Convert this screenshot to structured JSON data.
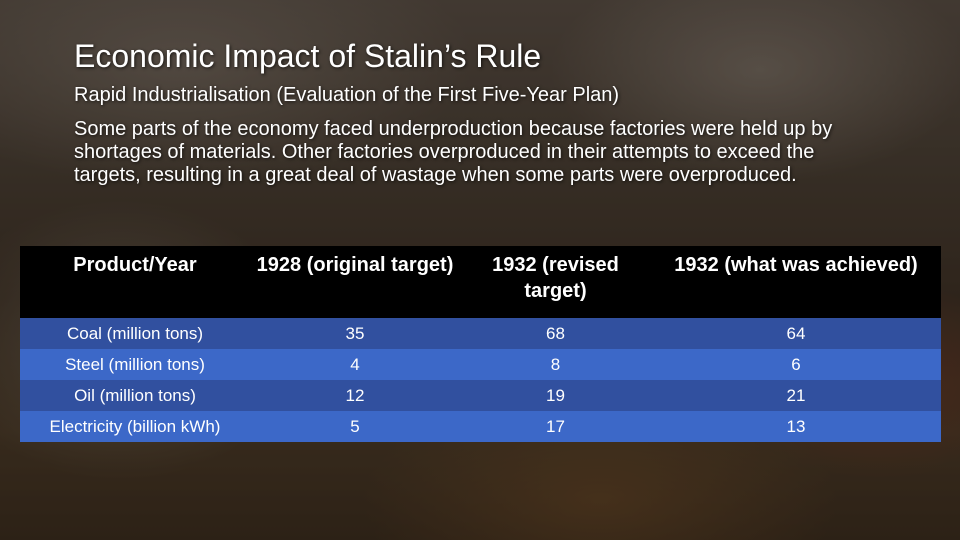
{
  "slide": {
    "title": "Economic Impact of Stalin’s Rule",
    "subtitle": "Rapid Industrialisation (Evaluation of the First Five-Year Plan)",
    "body": "Some parts of the economy faced underproduction because factories were held up by shortages of materials. Other factories overproduced in their attempts to exceed the targets, resulting in a great deal of wastage when some parts were overproduced."
  },
  "table": {
    "headers": [
      "Product/Year",
      "1928 (original target)",
      "1932 (revised target)",
      "1932 (what was achieved)"
    ],
    "rows": [
      [
        "Coal (million tons)",
        "35",
        "68",
        "64"
      ],
      [
        "Steel (million tons)",
        "4",
        "8",
        "6"
      ],
      [
        "Oil (million tons)",
        "12",
        "19",
        "21"
      ],
      [
        "Electricity (billion kWh)",
        "5",
        "17",
        "13"
      ]
    ]
  },
  "colors": {
    "header_bg": "#000000",
    "row_dark": "#31509f",
    "row_light": "#3c68c8"
  }
}
